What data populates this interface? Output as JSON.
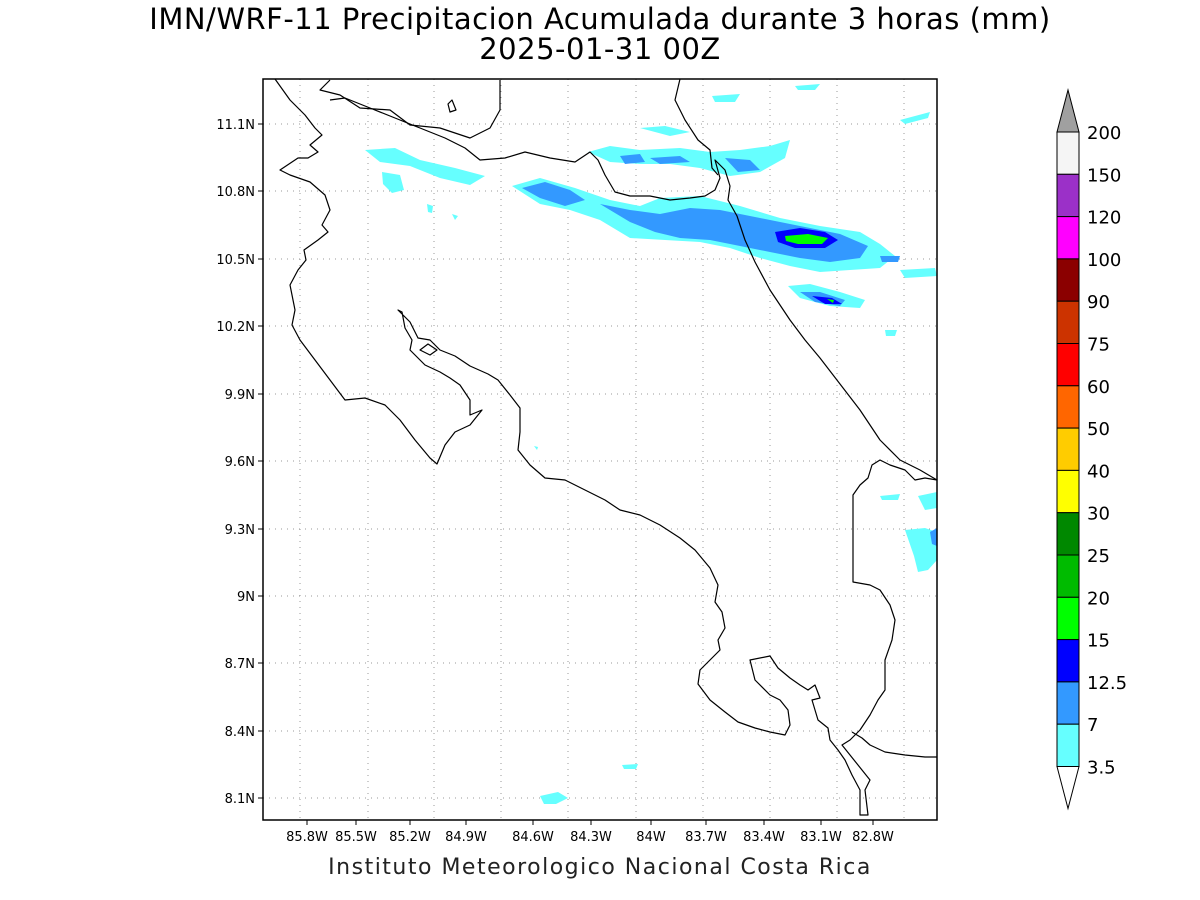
{
  "title_line1": "IMN/WRF-11 Precipitacion Acumulada durante 3 horas (mm)",
  "title_line2": "2025-01-31 00Z",
  "footer": "Instituto Meteorologico Nacional Costa Rica",
  "map": {
    "lon_range": [
      -86.0,
      -82.7
    ],
    "lat_range": [
      8.0,
      11.3
    ],
    "lon_ticks": [
      "85.8W",
      "85.5W",
      "85.2W",
      "84.9W",
      "84.6W",
      "84.3W",
      "84W",
      "83.7W",
      "83.4W",
      "83.1W",
      "82.8W"
    ],
    "lat_ticks": [
      "11.1N",
      "10.8N",
      "10.5N",
      "10.2N",
      "9.9N",
      "9.6N",
      "9.3N",
      "9N",
      "8.7N",
      "8.4N",
      "8.1N"
    ],
    "grid": "dotted"
  },
  "legend": {
    "labels": [
      "200",
      "150",
      "120",
      "100",
      "90",
      "75",
      "60",
      "50",
      "40",
      "30",
      "25",
      "20",
      "15",
      "12.5",
      "7",
      "3.5"
    ],
    "colors": [
      "#f5f5f5",
      "#9b30c8",
      "#ff00ff",
      "#8b0000",
      "#cc3300",
      "#ff0000",
      "#ff6600",
      "#ffcc00",
      "#ffff00",
      "#008800",
      "#00bb00",
      "#00ff00",
      "#0000ff",
      "#3399ff",
      "#66ffff"
    ],
    "over_color": "#a0a0a0",
    "under_color": "#ffffff"
  }
}
